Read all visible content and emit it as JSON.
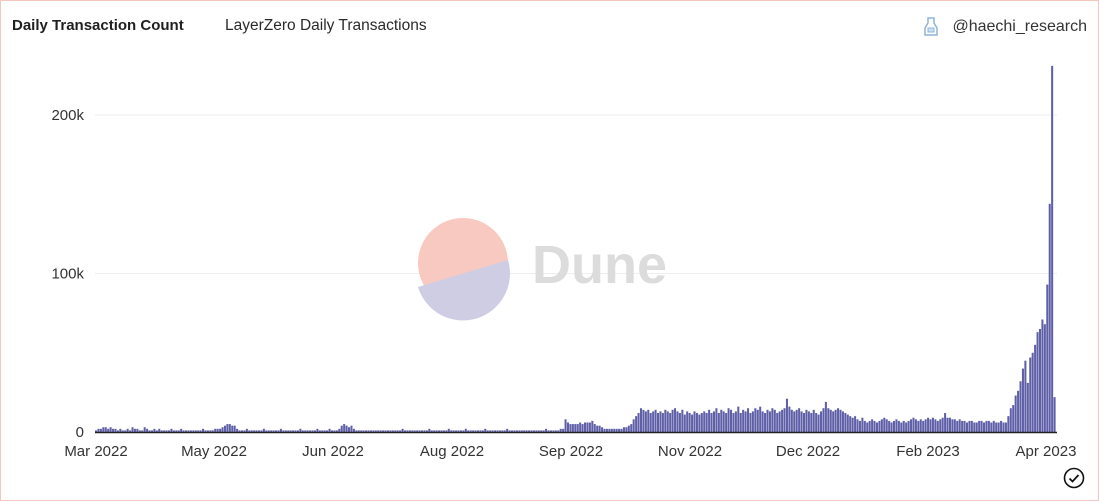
{
  "header": {
    "title": "Daily Transaction Count",
    "subtitle": "LayerZero Daily Transactions",
    "author": "@haechi_research"
  },
  "watermark": "Dune",
  "colors": {
    "bar": "#5f5fa8",
    "grid": "#eeeeee",
    "border": "#f4c6c0",
    "logo_top": "#f7c9c1",
    "logo_bottom": "#cfcde3"
  },
  "chart_data": {
    "type": "bar",
    "title": "Daily Transaction Count",
    "xlabel": "",
    "ylabel": "",
    "ylim": [
      0,
      235000
    ],
    "yticks": [
      {
        "value": 0,
        "label": "0"
      },
      {
        "value": 100000,
        "label": "100k"
      },
      {
        "value": 200000,
        "label": "200k"
      }
    ],
    "xticks": [
      "Mar 2022",
      "May 2022",
      "Jun 2022",
      "Aug 2022",
      "Sep 2022",
      "Nov 2022",
      "Dec 2022",
      "Feb 2023",
      "Apr 2023"
    ],
    "grid": true,
    "x_start": "2022-03-01",
    "values_thousands": [
      1,
      2,
      2,
      3,
      3,
      2,
      3,
      2,
      2,
      1,
      2,
      1,
      1,
      2,
      1,
      3,
      2,
      2,
      1,
      1,
      3,
      2,
      1,
      1,
      2,
      1,
      2,
      1,
      1,
      1,
      1,
      2,
      1,
      1,
      1,
      2,
      1,
      1,
      1,
      1,
      1,
      1,
      1,
      1,
      2,
      1,
      1,
      1,
      1,
      2,
      2,
      2,
      3,
      4,
      5,
      5,
      4,
      4,
      2,
      1,
      1,
      1,
      2,
      1,
      1,
      1,
      1,
      1,
      1,
      2,
      1,
      1,
      1,
      1,
      1,
      1,
      2,
      1,
      1,
      1,
      1,
      1,
      1,
      1,
      2,
      1,
      1,
      1,
      1,
      1,
      1,
      2,
      1,
      1,
      1,
      1,
      2,
      1,
      1,
      1,
      2,
      4,
      5,
      4,
      3,
      4,
      2,
      1,
      1,
      1,
      1,
      1,
      1,
      1,
      1,
      1,
      1,
      1,
      1,
      1,
      1,
      1,
      1,
      1,
      1,
      1,
      2,
      1,
      1,
      1,
      1,
      1,
      1,
      1,
      1,
      1,
      1,
      2,
      1,
      1,
      1,
      1,
      1,
      1,
      1,
      2,
      1,
      1,
      1,
      1,
      1,
      1,
      2,
      1,
      1,
      1,
      1,
      1,
      1,
      1,
      2,
      1,
      1,
      1,
      1,
      1,
      1,
      1,
      1,
      2,
      1,
      1,
      1,
      1,
      1,
      1,
      1,
      1,
      1,
      1,
      1,
      1,
      1,
      1,
      1,
      2,
      1,
      1,
      1,
      1,
      1,
      2,
      2,
      8,
      6,
      5,
      5,
      5,
      5,
      6,
      5,
      6,
      6,
      6,
      7,
      5,
      4,
      4,
      3,
      2,
      2,
      2,
      2,
      2,
      2,
      2,
      2,
      3,
      3,
      4,
      5,
      8,
      10,
      12,
      15,
      14,
      13,
      14,
      12,
      13,
      14,
      12,
      13,
      12,
      14,
      13,
      12,
      14,
      15,
      13,
      12,
      14,
      11,
      13,
      12,
      11,
      13,
      12,
      11,
      12,
      13,
      12,
      14,
      12,
      13,
      15,
      12,
      14,
      13,
      12,
      15,
      14,
      12,
      13,
      16,
      12,
      14,
      13,
      15,
      12,
      13,
      15,
      14,
      16,
      13,
      12,
      14,
      13,
      15,
      14,
      12,
      13,
      14,
      15,
      21,
      16,
      14,
      13,
      14,
      15,
      13,
      12,
      14,
      13,
      12,
      14,
      12,
      11,
      13,
      15,
      19,
      15,
      14,
      13,
      14,
      15,
      14,
      13,
      12,
      11,
      10,
      9,
      10,
      8,
      7,
      9,
      7,
      6,
      7,
      8,
      7,
      6,
      7,
      8,
      9,
      8,
      7,
      6,
      7,
      8,
      7,
      6,
      7,
      6,
      7,
      8,
      9,
      8,
      7,
      8,
      7,
      8,
      9,
      8,
      9,
      8,
      7,
      8,
      9,
      12,
      9,
      9,
      8,
      8,
      7,
      8,
      7,
      7,
      6,
      7,
      7,
      6,
      6,
      7,
      7,
      6,
      7,
      7,
      6,
      7,
      6,
      6,
      7,
      6,
      6,
      10,
      15,
      17,
      23,
      26,
      32,
      40,
      45,
      31,
      47,
      50,
      55,
      63,
      65,
      71,
      68,
      93,
      144,
      231,
      22
    ]
  }
}
